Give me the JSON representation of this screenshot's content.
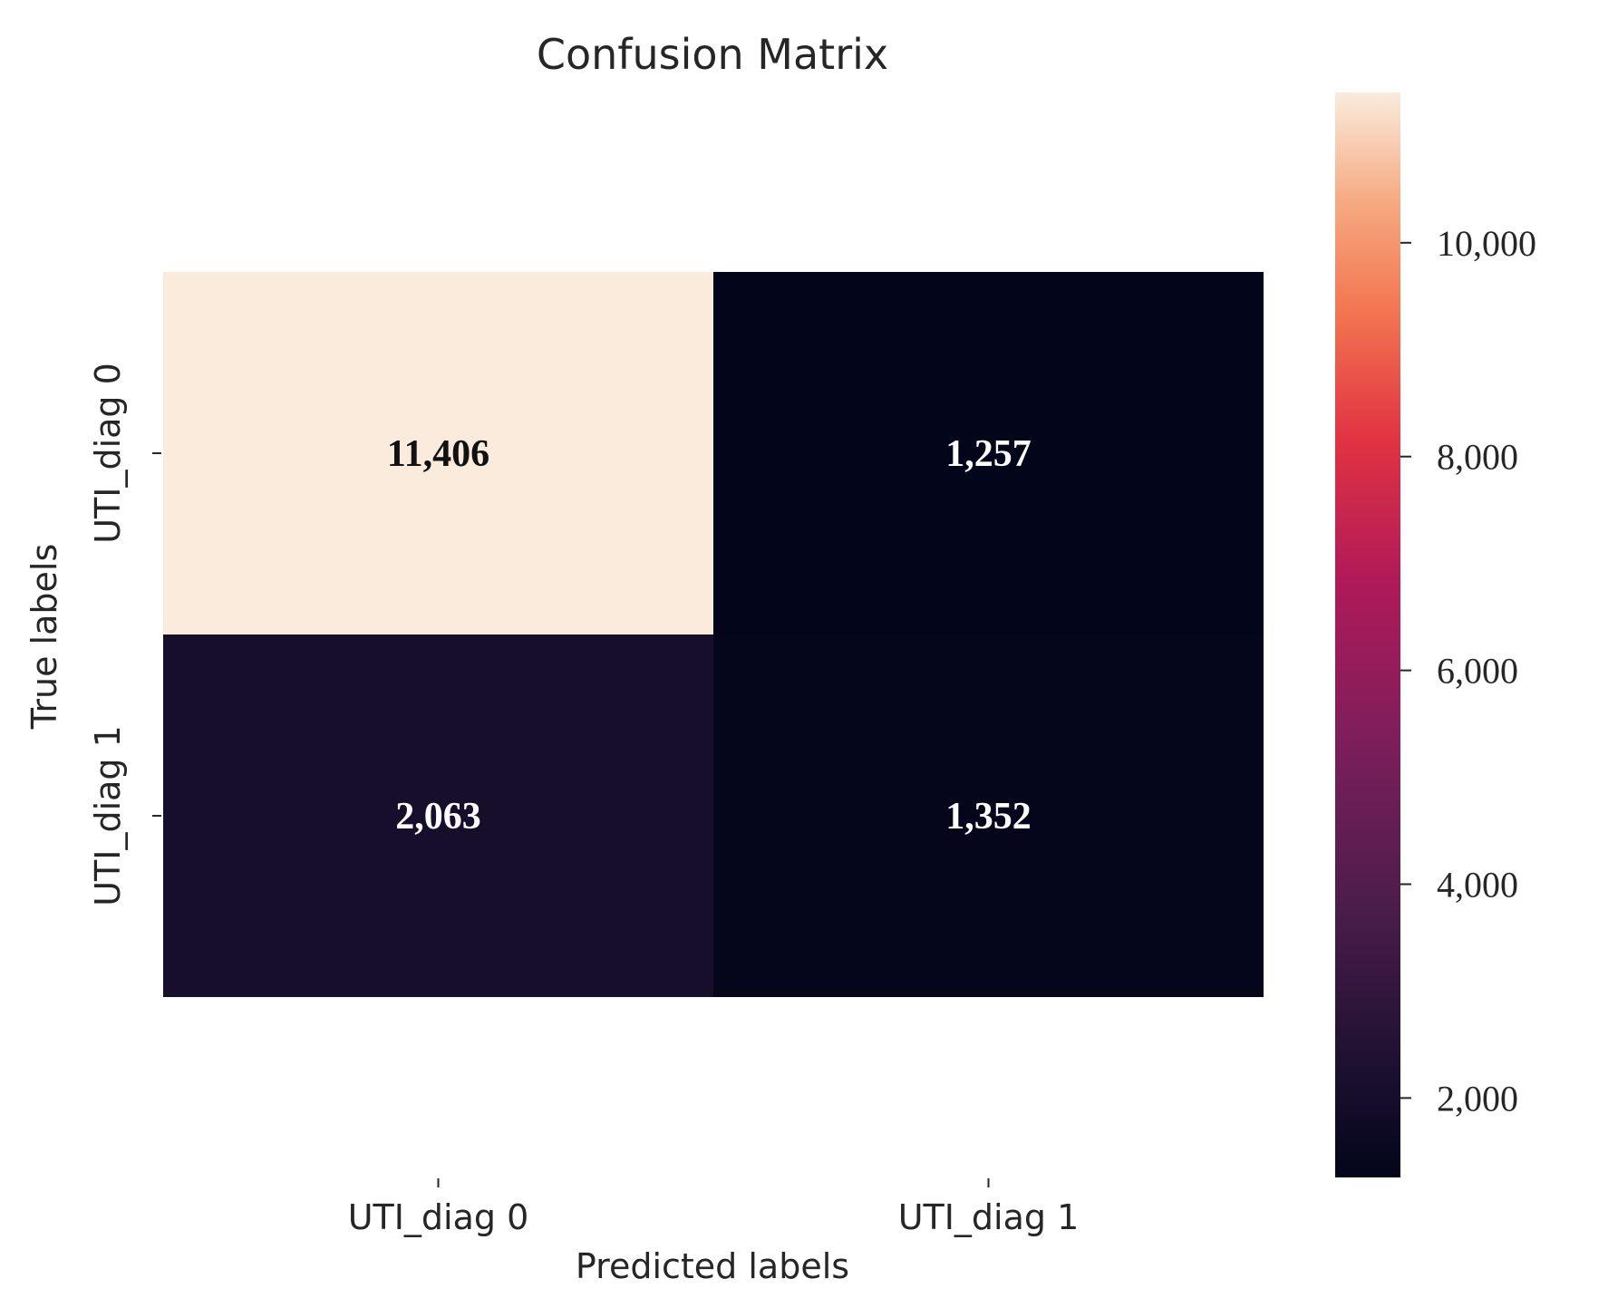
{
  "chart_data": {
    "type": "heatmap",
    "title": "Confusion Matrix",
    "xlabel": "Predicted labels",
    "ylabel": "True labels",
    "x_categories": [
      "UTI_diag 0",
      "UTI_diag 1"
    ],
    "y_categories": [
      "UTI_diag 0",
      "UTI_diag 1"
    ],
    "values": [
      [
        11406,
        1257
      ],
      [
        2063,
        1352
      ]
    ],
    "cell_labels": [
      [
        "11,406",
        "1,257"
      ],
      [
        "2,063",
        "1,352"
      ]
    ],
    "colorbar": {
      "colormap": "rocket",
      "range": [
        1257,
        11406
      ],
      "ticks": [
        2000,
        4000,
        6000,
        8000,
        10000
      ],
      "tick_labels": [
        "2,000",
        "4,000",
        "6,000",
        "8,000",
        "10,000"
      ]
    },
    "grid": false,
    "legend": "colorbar-right"
  },
  "colors": {
    "background": "#ffffff",
    "text": "#262626",
    "cell_text_light": "#ffffff",
    "cell_text_dark": "#111111"
  }
}
